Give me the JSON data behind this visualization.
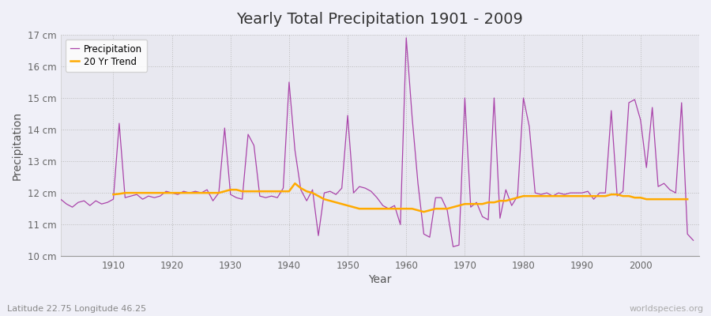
{
  "title": "Yearly Total Precipitation 1901 - 2009",
  "xlabel": "Year",
  "ylabel": "Precipitation",
  "subtitle": "Latitude 22.75 Longitude 46.25",
  "watermark": "worldspecies.org",
  "bg_color": "#f0f0f8",
  "plot_bg_color": "#e8e8f0",
  "precip_color": "#aa44aa",
  "trend_color": "#ffaa00",
  "ylim": [
    10,
    17
  ],
  "yticks": [
    10,
    11,
    12,
    13,
    14,
    15,
    16,
    17
  ],
  "ytick_labels": [
    "10 cm",
    "11 cm",
    "12 cm",
    "13 cm",
    "14 cm",
    "15 cm",
    "16 cm",
    "17 cm"
  ],
  "years": [
    1901,
    1902,
    1903,
    1904,
    1905,
    1906,
    1907,
    1908,
    1909,
    1910,
    1911,
    1912,
    1913,
    1914,
    1915,
    1916,
    1917,
    1918,
    1919,
    1920,
    1921,
    1922,
    1923,
    1924,
    1925,
    1926,
    1927,
    1928,
    1929,
    1930,
    1931,
    1932,
    1933,
    1934,
    1935,
    1936,
    1937,
    1938,
    1939,
    1940,
    1941,
    1942,
    1943,
    1944,
    1945,
    1946,
    1947,
    1948,
    1949,
    1950,
    1951,
    1952,
    1953,
    1954,
    1955,
    1956,
    1957,
    1958,
    1959,
    1960,
    1961,
    1962,
    1963,
    1964,
    1965,
    1966,
    1967,
    1968,
    1969,
    1970,
    1971,
    1972,
    1973,
    1974,
    1975,
    1976,
    1977,
    1978,
    1979,
    1980,
    1981,
    1982,
    1983,
    1984,
    1985,
    1986,
    1987,
    1988,
    1989,
    1990,
    1991,
    1992,
    1993,
    1994,
    1995,
    1996,
    1997,
    1998,
    1999,
    2000,
    2001,
    2002,
    2003,
    2004,
    2005,
    2006,
    2007,
    2008,
    2009
  ],
  "precip": [
    11.8,
    11.65,
    11.55,
    11.7,
    11.75,
    11.6,
    11.75,
    11.65,
    11.7,
    11.8,
    14.2,
    11.85,
    11.9,
    11.95,
    11.8,
    11.9,
    11.85,
    11.9,
    12.05,
    12.0,
    11.95,
    12.05,
    12.0,
    12.05,
    12.0,
    12.1,
    11.75,
    12.0,
    14.05,
    11.95,
    11.85,
    11.8,
    13.85,
    13.5,
    11.9,
    11.85,
    11.9,
    11.85,
    12.15,
    15.5,
    13.35,
    12.1,
    11.75,
    12.1,
    10.65,
    12.0,
    12.05,
    11.95,
    12.15,
    14.45,
    12.0,
    12.2,
    12.15,
    12.05,
    11.85,
    11.6,
    11.5,
    11.6,
    11.0,
    16.9,
    14.4,
    12.3,
    10.7,
    10.6,
    11.85,
    11.85,
    11.45,
    10.3,
    10.35,
    15.0,
    11.55,
    11.7,
    11.25,
    11.15,
    15.0,
    11.2,
    12.1,
    11.6,
    11.9,
    15.0,
    14.1,
    12.0,
    11.95,
    12.0,
    11.9,
    12.0,
    11.95,
    12.0,
    12.0,
    12.0,
    12.05,
    11.8,
    12.0,
    12.0,
    14.6,
    11.9,
    12.05,
    14.85,
    14.95,
    14.3,
    12.8,
    14.7,
    12.2,
    12.3,
    12.1,
    12.0,
    14.85,
    10.7,
    10.5
  ],
  "trend": [
    null,
    null,
    null,
    null,
    null,
    null,
    null,
    null,
    null,
    11.95,
    11.97,
    12.0,
    12.0,
    12.0,
    12.0,
    12.0,
    12.0,
    12.0,
    12.0,
    12.0,
    12.0,
    12.0,
    12.0,
    12.0,
    12.0,
    12.0,
    12.0,
    12.0,
    12.05,
    12.1,
    12.1,
    12.05,
    12.05,
    12.05,
    12.05,
    12.05,
    12.05,
    12.05,
    12.05,
    12.05,
    12.3,
    12.15,
    12.05,
    12.0,
    11.9,
    11.8,
    11.75,
    11.7,
    11.65,
    11.6,
    11.55,
    11.5,
    11.5,
    11.5,
    11.5,
    11.5,
    11.5,
    11.5,
    11.5,
    11.5,
    11.5,
    11.45,
    11.4,
    11.45,
    11.5,
    11.5,
    11.5,
    11.55,
    11.6,
    11.65,
    11.65,
    11.65,
    11.65,
    11.7,
    11.7,
    11.75,
    11.75,
    11.8,
    11.85,
    11.9,
    11.9,
    11.9,
    11.9,
    11.9,
    11.9,
    11.9,
    11.9,
    11.9,
    11.9,
    11.9,
    11.9,
    11.9,
    11.9,
    11.9,
    11.95,
    11.95,
    11.9,
    11.9,
    11.85,
    11.85,
    11.8,
    11.8,
    11.8,
    11.8,
    11.8,
    11.8,
    11.8,
    11.8,
    null
  ]
}
